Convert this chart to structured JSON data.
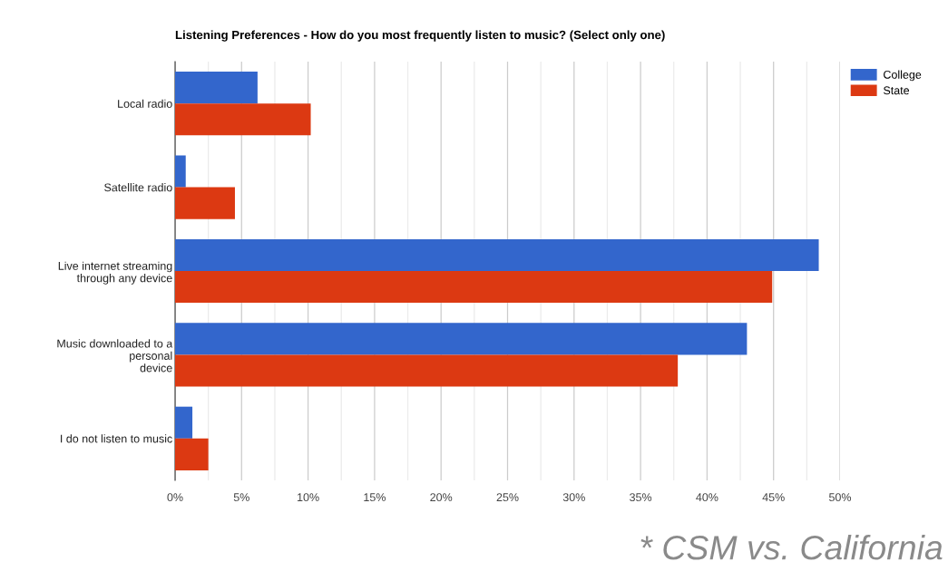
{
  "chart_data": {
    "type": "bar",
    "orientation": "horizontal",
    "title": "Listening Preferences - How do you most frequently listen to music? (Select only one)",
    "categories": [
      "Local radio",
      "Satellite radio",
      "Live internet streaming\nthrough any device",
      "Music downloaded to a\npersonal\ndevice",
      "I do not listen to music"
    ],
    "series": [
      {
        "name": "College",
        "color": "#3366cc",
        "values": [
          6.2,
          0.8,
          48.4,
          43.0,
          1.3
        ]
      },
      {
        "name": "State",
        "color": "#dc3912",
        "values": [
          10.2,
          4.5,
          44.9,
          37.8,
          2.5
        ]
      }
    ],
    "xlim": [
      0,
      50
    ],
    "xticks": [
      {
        "value": 0,
        "label": "0%"
      },
      {
        "value": 2.5,
        "label": null
      },
      {
        "value": 5,
        "label": "5%"
      },
      {
        "value": 7.5,
        "label": null
      },
      {
        "value": 10,
        "label": "10%"
      },
      {
        "value": 12.5,
        "label": null
      },
      {
        "value": 15,
        "label": "15%"
      },
      {
        "value": 17.5,
        "label": null
      },
      {
        "value": 20,
        "label": "20%"
      },
      {
        "value": 22.5,
        "label": null
      },
      {
        "value": 25,
        "label": "25%"
      },
      {
        "value": 27.5,
        "label": null
      },
      {
        "value": 30,
        "label": "30%"
      },
      {
        "value": 32.5,
        "label": null
      },
      {
        "value": 35,
        "label": "35%"
      },
      {
        "value": 37.5,
        "label": null
      },
      {
        "value": 40,
        "label": "40%"
      },
      {
        "value": 42.5,
        "label": null
      },
      {
        "value": 45,
        "label": "45%"
      },
      {
        "value": 47.5,
        "label": null
      },
      {
        "value": 50,
        "label": "50%"
      }
    ],
    "grid": "x",
    "legend": "top right",
    "annotations": [
      "* CSM vs. California"
    ]
  }
}
